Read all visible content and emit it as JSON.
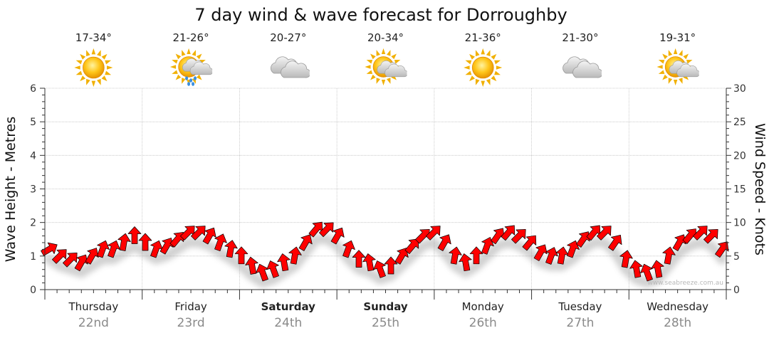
{
  "title": "7 day wind & wave forecast for Dorroughby",
  "watermark": "www.seabreeze.com.au",
  "days": [
    {
      "name": "Thursday",
      "date": "22nd",
      "temp": "17-34°",
      "weather_icon": "sun-icon",
      "bold": false
    },
    {
      "name": "Friday",
      "date": "23rd",
      "temp": "21-26°",
      "weather_icon": "sun-cloud-rain-icon",
      "bold": false
    },
    {
      "name": "Saturday",
      "date": "24th",
      "temp": "20-27°",
      "weather_icon": "cloud-icon",
      "bold": true
    },
    {
      "name": "Sunday",
      "date": "25th",
      "temp": "20-34°",
      "weather_icon": "sun-cloud-icon",
      "bold": true
    },
    {
      "name": "Monday",
      "date": "26th",
      "temp": "21-36°",
      "weather_icon": "sun-icon",
      "bold": false
    },
    {
      "name": "Tuesday",
      "date": "27th",
      "temp": "21-30°",
      "weather_icon": "cloud-icon",
      "bold": false
    },
    {
      "name": "Wednesday",
      "date": "28th",
      "temp": "19-31°",
      "weather_icon": "sun-cloud-icon",
      "bold": false
    }
  ],
  "colors": {
    "arrow": "#ff0000",
    "arrow_outline": "#000000",
    "grid": "#c0c0c0",
    "sun": "#f5b800"
  },
  "chart_data": {
    "type": "line",
    "title": "7 day wind & wave forecast for Dorroughby",
    "ylabel_left": "Wave Height - Metres",
    "ylabel_right": "Wind Speed - Knots",
    "ylim_left": [
      0,
      6
    ],
    "ylim_right": [
      0,
      30
    ],
    "yticks_left": [
      "0",
      "1",
      "2",
      "3",
      "4",
      "5",
      "6"
    ],
    "yticks_right": [
      "0",
      "5",
      "10",
      "15",
      "20",
      "25",
      "30"
    ],
    "grid": true,
    "series": [
      {
        "name": "Wind Speed",
        "axis": "right",
        "marker": "direction-arrow",
        "values": [
          6,
          5,
          4.5,
          4,
          5,
          6,
          6,
          7,
          8,
          7,
          6,
          6.5,
          7.5,
          8.5,
          8.5,
          8,
          7,
          6,
          5,
          3.5,
          2.5,
          3,
          4,
          5,
          7,
          9,
          9,
          8,
          6,
          4.5,
          4,
          3,
          3.5,
          5,
          6.5,
          8,
          8.5,
          7,
          5,
          4,
          5,
          6.5,
          8,
          8.5,
          8,
          7,
          5.5,
          5,
          5,
          6,
          7.5,
          8.5,
          8.5,
          7,
          4.5,
          3,
          2.5,
          3,
          5,
          7,
          8,
          8.5,
          8,
          6
        ],
        "directions_deg": [
          240,
          225,
          225,
          210,
          210,
          200,
          200,
          190,
          180,
          180,
          200,
          210,
          220,
          225,
          225,
          210,
          200,
          190,
          180,
          170,
          160,
          160,
          170,
          190,
          210,
          220,
          225,
          210,
          200,
          180,
          170,
          160,
          180,
          210,
          220,
          225,
          225,
          210,
          190,
          170,
          180,
          200,
          215,
          220,
          225,
          220,
          210,
          200,
          190,
          200,
          215,
          220,
          225,
          215,
          190,
          170,
          160,
          170,
          190,
          210,
          220,
          225,
          225,
          215
        ]
      }
    ]
  }
}
